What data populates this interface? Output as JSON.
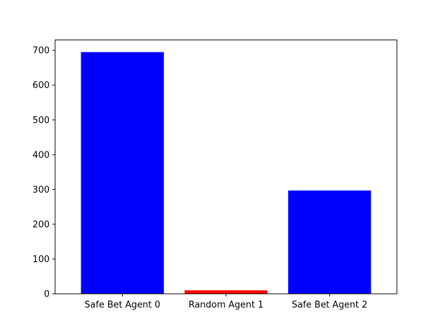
{
  "chart_data": {
    "type": "bar",
    "title": "",
    "xlabel": "",
    "ylabel": "",
    "categories": [
      "Safe Bet Agent 0",
      "Random Agent 1",
      "Safe Bet Agent 2"
    ],
    "values": [
      695,
      10,
      297
    ],
    "bar_colors": [
      "#0000ff",
      "#ff0000",
      "#0000ff"
    ],
    "ylim": [
      0,
      730
    ],
    "yticks": [
      0,
      100,
      200,
      300,
      400,
      500,
      600,
      700
    ],
    "grid": false,
    "legend": "none"
  }
}
